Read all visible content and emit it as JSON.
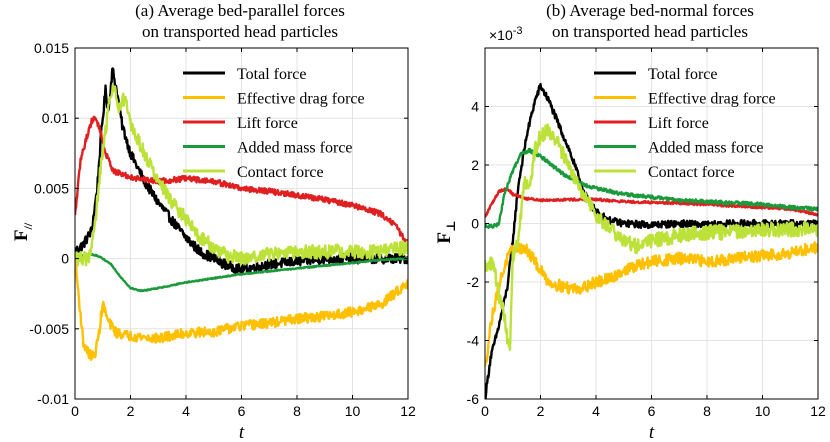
{
  "figure_titles": [
    "(a) Average bed-parallel forces on transported head particles",
    "(b) Average bed-normal forces on transported head particles"
  ],
  "chart_data": [
    {
      "type": "line",
      "title_lines": [
        "(a) Average bed-parallel forces",
        "on transported head particles"
      ],
      "xlabel": "t",
      "ylabel": "F",
      "ylabel_sub": "//",
      "multiplier": "",
      "xlim": [
        0,
        12
      ],
      "ylim": [
        -0.01,
        0.015
      ],
      "xticks": [
        0,
        2,
        4,
        6,
        8,
        10,
        12
      ],
      "xtick_labels": [
        "0",
        "2",
        "4",
        "6",
        "8",
        "10",
        "12"
      ],
      "yticks": [
        -0.01,
        -0.005,
        0,
        0.005,
        0.01,
        0.015
      ],
      "ytick_labels": [
        "-0.01",
        "-0.005",
        "0",
        "0.005",
        "0.01",
        "0.015"
      ],
      "series": [
        {
          "name": "Total force",
          "color": "#000000",
          "noise": 0.00035,
          "x": [
            0,
            0.3,
            0.6,
            0.8,
            0.95,
            1.1,
            1.2,
            1.35,
            1.5,
            1.7,
            2.0,
            2.5,
            3.0,
            3.5,
            4.0,
            4.5,
            5.0,
            5.5,
            6.0,
            6.5,
            7.0,
            8.0,
            9.0,
            10.0,
            11.0,
            12.0
          ],
          "y": [
            0.0005,
            0.001,
            0.002,
            0.005,
            0.009,
            0.012,
            0.0105,
            0.0135,
            0.012,
            0.0095,
            0.0075,
            0.0055,
            0.004,
            0.0027,
            0.0015,
            0.0005,
            0.0,
            -0.0005,
            -0.0008,
            -0.0006,
            -0.0004,
            -0.0002,
            0.0,
            0.0,
            0.0,
            0.0
          ]
        },
        {
          "name": "Effective drag force",
          "color": "#FFC000",
          "noise": 0.00035,
          "x": [
            0,
            0.15,
            0.3,
            0.5,
            0.7,
            0.85,
            1.0,
            1.2,
            1.5,
            2.0,
            2.5,
            3.0,
            3.5,
            4.0,
            5.0,
            6.0,
            7.0,
            8.0,
            9.0,
            10.0,
            11.0,
            12.0
          ],
          "y": [
            0,
            -0.003,
            -0.006,
            -0.0068,
            -0.007,
            -0.0055,
            -0.0032,
            -0.0045,
            -0.0053,
            -0.0055,
            -0.0056,
            -0.0057,
            -0.0055,
            -0.0053,
            -0.0052,
            -0.0048,
            -0.0046,
            -0.0043,
            -0.0041,
            -0.0038,
            -0.0033,
            -0.0017
          ]
        },
        {
          "name": "Lift force",
          "color": "#E02020",
          "noise": 0.0002,
          "x": [
            0,
            0.2,
            0.4,
            0.6,
            0.75,
            0.9,
            1.1,
            1.4,
            1.7,
            2.0,
            3.0,
            4.0,
            5.0,
            6.0,
            7.0,
            8.0,
            9.0,
            10.0,
            11.0,
            11.5,
            12.0
          ],
          "y": [
            0.003,
            0.007,
            0.0085,
            0.0098,
            0.01,
            0.0092,
            0.0075,
            0.0062,
            0.006,
            0.0058,
            0.0055,
            0.0057,
            0.0055,
            0.005,
            0.0048,
            0.0045,
            0.0042,
            0.0038,
            0.0032,
            0.0025,
            0.001
          ]
        },
        {
          "name": "Added mass force",
          "color": "#1A9A3A",
          "noise": 4e-05,
          "x": [
            0,
            0.3,
            0.6,
            0.8,
            1.0,
            1.3,
            1.6,
            2.0,
            2.4,
            3.0,
            4.0,
            5.0,
            6.0,
            7.0,
            8.0,
            9.0,
            10.0,
            11.0,
            12.0
          ],
          "y": [
            0,
            0.0002,
            0.0003,
            0.0002,
            0.0,
            -0.0004,
            -0.0012,
            -0.0021,
            -0.0023,
            -0.0021,
            -0.0017,
            -0.0014,
            -0.0011,
            -0.0009,
            -0.0007,
            -0.0005,
            -0.0003,
            -0.0001,
            0.0
          ]
        },
        {
          "name": "Contact force",
          "color": "#BCE23A",
          "noise": 0.0005,
          "x": [
            0,
            0.5,
            0.7,
            0.9,
            1.1,
            1.25,
            1.4,
            1.55,
            1.8,
            2.0,
            2.5,
            3.0,
            3.5,
            4.0,
            4.5,
            5.0,
            5.5,
            6.0,
            7.0,
            8.0,
            9.0,
            10.0,
            11.0,
            12.0
          ],
          "y": [
            0,
            0.0,
            0.002,
            0.006,
            0.009,
            0.0115,
            0.0125,
            0.0105,
            0.0115,
            0.0095,
            0.0075,
            0.0055,
            0.004,
            0.0028,
            0.0015,
            0.0008,
            0.0002,
            0.0,
            0.0003,
            0.0005,
            0.0005,
            0.0005,
            0.0005,
            0.0008
          ]
        }
      ]
    },
    {
      "type": "line",
      "title_lines": [
        "(b) Average bed-normal forces",
        "on transported head particles"
      ],
      "xlabel": "t",
      "ylabel": "F",
      "ylabel_sub": "⊥",
      "multiplier": "×10",
      "multiplier_exp": "-3",
      "xlim": [
        0,
        12
      ],
      "ylim": [
        -6,
        6
      ],
      "xticks": [
        0,
        2,
        4,
        6,
        8,
        10,
        12
      ],
      "xtick_labels": [
        "0",
        "2",
        "4",
        "6",
        "8",
        "10",
        "12"
      ],
      "yticks": [
        -6,
        -4,
        -2,
        0,
        2,
        4
      ],
      "ytick_labels": [
        "-6",
        "-4",
        "-2",
        "0",
        "2",
        "4"
      ],
      "series": [
        {
          "name": "Total force",
          "color": "#000000",
          "noise": 0.12,
          "x": [
            0,
            0.2,
            0.5,
            0.8,
            1.0,
            1.2,
            1.5,
            1.8,
            2.0,
            2.3,
            2.6,
            3.0,
            3.3,
            3.6,
            4.0,
            4.5,
            5.0,
            6.0,
            7.0,
            8.0,
            9.0,
            10.0,
            11.0,
            12.0
          ],
          "y": [
            -6.0,
            -4.6,
            -3.5,
            -2.2,
            -0.6,
            1.3,
            3.0,
            4.2,
            4.7,
            4.2,
            3.5,
            2.6,
            1.8,
            1.0,
            0.4,
            0.1,
            0.0,
            -0.05,
            0.0,
            -0.05,
            0.0,
            0.0,
            0.0,
            0.0
          ]
        },
        {
          "name": "Effective drag force",
          "color": "#FFC000",
          "noise": 0.2,
          "x": [
            0,
            0.2,
            0.4,
            0.6,
            0.8,
            1.0,
            1.2,
            1.5,
            1.8,
            2.0,
            2.3,
            2.6,
            3.0,
            3.5,
            4.0,
            4.5,
            5.0,
            6.0,
            7.0,
            8.0,
            9.0,
            10.0,
            11.0,
            12.0
          ],
          "y": [
            -5.0,
            -3.5,
            -2.5,
            -1.8,
            -1.2,
            -0.9,
            -0.8,
            -0.9,
            -1.3,
            -1.6,
            -2.0,
            -2.1,
            -2.2,
            -2.2,
            -2.0,
            -1.9,
            -1.6,
            -1.3,
            -1.2,
            -1.3,
            -1.2,
            -1.1,
            -1.0,
            -0.8
          ]
        },
        {
          "name": "Lift force",
          "color": "#E02020",
          "noise": 0.04,
          "x": [
            0,
            0.2,
            0.5,
            0.8,
            1.0,
            1.5,
            2.0,
            3.0,
            4.0,
            5.0,
            6.0,
            7.0,
            8.0,
            9.0,
            10.0,
            11.0,
            12.0
          ],
          "y": [
            0.2,
            0.6,
            1.1,
            1.2,
            1.0,
            0.85,
            0.8,
            0.82,
            0.82,
            0.75,
            0.72,
            0.7,
            0.65,
            0.6,
            0.55,
            0.5,
            0.3
          ]
        },
        {
          "name": "Added mass force",
          "color": "#1A9A3A",
          "noise": 0.06,
          "x": [
            0,
            0.3,
            0.5,
            0.7,
            1.0,
            1.3,
            1.6,
            2.0,
            2.4,
            2.8,
            3.2,
            3.6,
            4.0,
            5.0,
            6.0,
            7.0,
            8.0,
            9.0,
            10.0,
            11.0,
            12.0
          ],
          "y": [
            -0.1,
            -0.1,
            0.0,
            1.0,
            1.8,
            2.4,
            2.5,
            2.3,
            2.0,
            1.7,
            1.5,
            1.3,
            1.2,
            1.0,
            0.9,
            0.8,
            0.75,
            0.7,
            0.65,
            0.55,
            0.5
          ]
        },
        {
          "name": "Contact force",
          "color": "#BCE23A",
          "noise": 0.25,
          "x": [
            0,
            0.3,
            0.5,
            0.7,
            0.9,
            1.0,
            1.2,
            1.4,
            1.6,
            1.8,
            2.0,
            2.3,
            2.6,
            3.0,
            3.5,
            4.0,
            4.5,
            5.0,
            5.5,
            6.0,
            7.0,
            8.0,
            9.0,
            10.0,
            11.0,
            12.0
          ],
          "y": [
            -1.4,
            -1.4,
            -2.4,
            -3.2,
            -4.5,
            -1.2,
            -0.6,
            1.4,
            1.2,
            2.5,
            3.0,
            3.2,
            2.8,
            2.0,
            1.0,
            0.3,
            -0.2,
            -0.6,
            -0.8,
            -0.6,
            -0.4,
            -0.3,
            -0.3,
            -0.2,
            -0.2,
            -0.2
          ]
        }
      ]
    }
  ]
}
